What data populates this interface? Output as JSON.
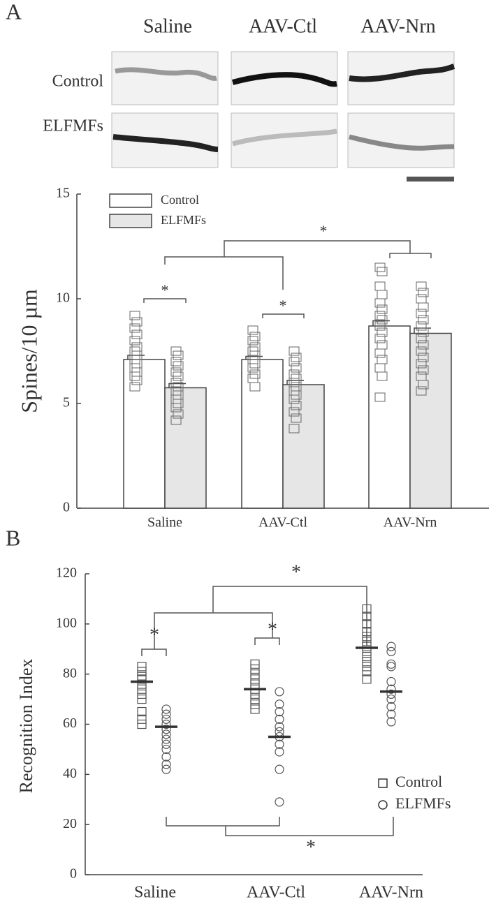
{
  "panel_labels": [
    "A",
    "B"
  ],
  "image_grid": {
    "columns": [
      "Saline",
      "AAV-Ctl",
      "AAV-Nrn"
    ],
    "rows": [
      "Control",
      "ELFMFs"
    ]
  },
  "chart_data": [
    {
      "type": "bar",
      "y_label": "Spines/10 µm",
      "categories": [
        "Saline",
        "AAV-Ctl",
        "AAV-Nrn"
      ],
      "ylim": [
        0,
        15
      ],
      "yticks": [
        0,
        5,
        10,
        15
      ],
      "marker": "square",
      "series": [
        {
          "name": "Control",
          "color": "#ffffff",
          "values": [
            7.1,
            7.1,
            8.7
          ],
          "errors": [
            0.2,
            0.15,
            0.25
          ],
          "points": [
            [
              9.2,
              8.9,
              8.6,
              8.3,
              8.0,
              7.7,
              7.5,
              7.3,
              7.1,
              6.9,
              6.7,
              6.5,
              6.3,
              6.1,
              5.8
            ],
            [
              8.5,
              8.2,
              8.0,
              7.7,
              7.5,
              7.3,
              7.1,
              6.9,
              6.7,
              6.4,
              6.2,
              5.8
            ],
            [
              11.5,
              11.3,
              10.6,
              10.2,
              9.8,
              9.5,
              9.2,
              9.0,
              8.7,
              8.4,
              8.1,
              7.8,
              7.4,
              7.1,
              6.7,
              6.3,
              5.3
            ]
          ]
        },
        {
          "name": "ELFMFs",
          "color": "#e6e6e6",
          "values": [
            5.75,
            5.9,
            8.35
          ],
          "errors": [
            0.2,
            0.2,
            0.25
          ],
          "points": [
            [
              7.5,
              7.3,
              7.0,
              6.8,
              6.5,
              6.3,
              6.0,
              5.8,
              5.6,
              5.4,
              5.2,
              5.0,
              4.8,
              4.5,
              4.2
            ],
            [
              7.5,
              7.2,
              7.0,
              6.7,
              6.4,
              6.2,
              6.0,
              5.8,
              5.6,
              5.4,
              5.2,
              4.9,
              4.6,
              4.3,
              3.8
            ],
            [
              10.6,
              10.3,
              10.0,
              9.6,
              9.3,
              9.0,
              8.7,
              8.4,
              8.1,
              7.8,
              7.5,
              7.2,
              6.9,
              6.6,
              6.3,
              5.9,
              5.6
            ]
          ]
        }
      ],
      "annotations": [
        "*",
        "*",
        "*"
      ]
    },
    {
      "type": "dot",
      "y_label": "Recognition Index",
      "categories": [
        "Saline",
        "AAV-Ctl",
        "AAV-Nrn"
      ],
      "ylim": [
        0,
        120
      ],
      "yticks": [
        0,
        20,
        40,
        60,
        80,
        100,
        120
      ],
      "series": [
        {
          "name": "Control",
          "marker": "square",
          "means": [
            77,
            74,
            90.5
          ],
          "points": [
            [
              83,
              81,
              79,
              78,
              76,
              74,
              72,
              70,
              65,
              62,
              60
            ],
            [
              84,
              82,
              80,
              78,
              76,
              74,
              72,
              70,
              68,
              66
            ],
            [
              106,
              103,
              100,
              97,
              95,
              93,
              91,
              89,
              87,
              85,
              83,
              81,
              78
            ]
          ]
        },
        {
          "name": "ELFMFs",
          "marker": "circle",
          "means": [
            59,
            55,
            73
          ],
          "points": [
            [
              66,
              64,
              62,
              60,
              58,
              56,
              54,
              52,
              50,
              47,
              44,
              42
            ],
            [
              73,
              68,
              65,
              62,
              59,
              57,
              55,
              52,
              49,
              42,
              29
            ],
            [
              91,
              89,
              84,
              83,
              77,
              74,
              72,
              70,
              67,
              64,
              61
            ]
          ]
        }
      ],
      "annotations": [
        "*",
        "*",
        "*",
        "*"
      ]
    }
  ]
}
